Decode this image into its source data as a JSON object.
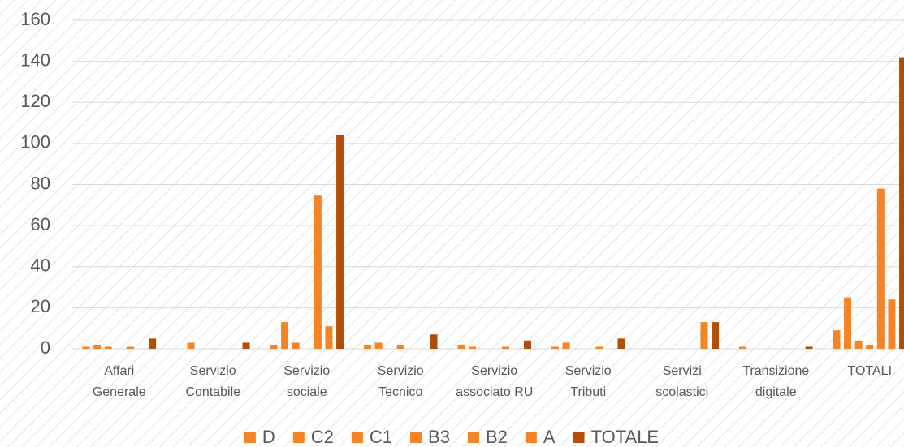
{
  "chart_data": {
    "type": "bar",
    "categories": [
      [
        "Affari",
        "Generale"
      ],
      [
        "Servizio",
        "Contabile"
      ],
      [
        "Servizio",
        "sociale"
      ],
      [
        "Servizio",
        "Tecnico"
      ],
      [
        "Servizio",
        "associato RU"
      ],
      [
        "Servizio",
        "Tributi"
      ],
      [
        "Servizi",
        "scolastici"
      ],
      [
        "Transizione",
        "digitale"
      ],
      [
        "TOTALI"
      ]
    ],
    "series": [
      {
        "name": "D",
        "color": "#f58427",
        "values": [
          1,
          0,
          2,
          2,
          2,
          1,
          0,
          1,
          9
        ]
      },
      {
        "name": "C2",
        "color": "#f58427",
        "values": [
          2,
          3,
          13,
          3,
          1,
          3,
          0,
          0,
          25
        ]
      },
      {
        "name": "C1",
        "color": "#f58427",
        "values": [
          1,
          0,
          3,
          0,
          0,
          0,
          0,
          0,
          4
        ]
      },
      {
        "name": "B3",
        "color": "#f58427",
        "values": [
          0,
          0,
          0,
          2,
          0,
          0,
          0,
          0,
          2
        ]
      },
      {
        "name": "B2",
        "color": "#f58427",
        "values": [
          1,
          0,
          75,
          0,
          1,
          1,
          0,
          0,
          78
        ]
      },
      {
        "name": "A",
        "color": "#f58427",
        "values": [
          0,
          0,
          11,
          0,
          0,
          0,
          13,
          0,
          24
        ]
      },
      {
        "name": "TOTALE",
        "color": "#b34d08",
        "values": [
          5,
          3,
          104,
          7,
          4,
          5,
          13,
          1,
          142
        ]
      }
    ],
    "ylim": [
      0,
      160
    ],
    "yticks": [
      0,
      20,
      40,
      60,
      80,
      100,
      120,
      140,
      160
    ],
    "grid": true,
    "legend": "bottom"
  }
}
